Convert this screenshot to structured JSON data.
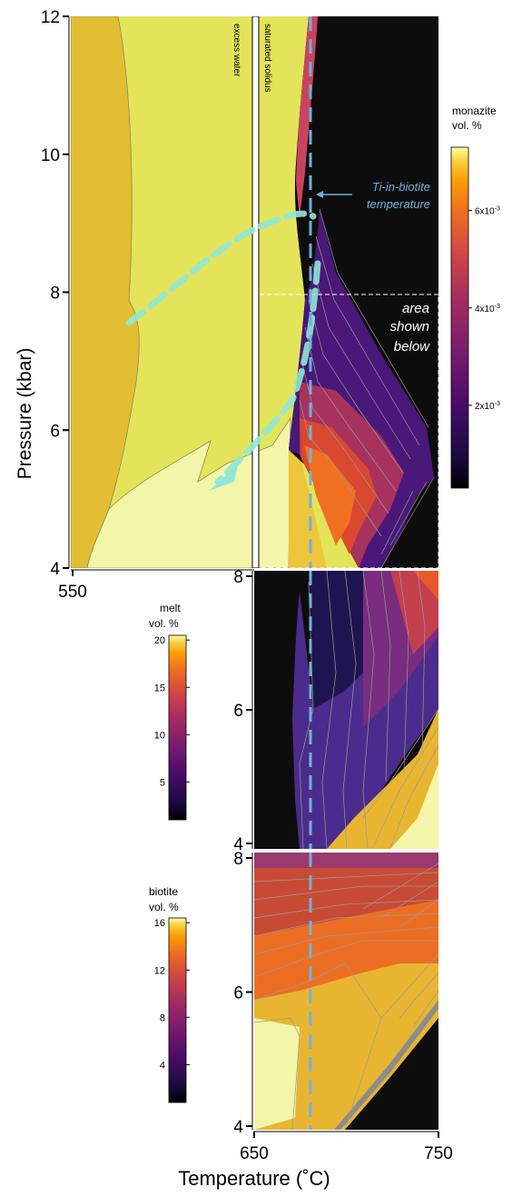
{
  "chart_data": [
    {
      "type": "heatmap",
      "panel": "main",
      "ylabel": "Pressure (kbar)",
      "x_ticks": [
        550
      ],
      "y_ticks": [
        4,
        6,
        8,
        10,
        12
      ],
      "xlim": [
        550,
        750
      ],
      "ylim": [
        4,
        12
      ],
      "annotations": {
        "excess_water": "excess water",
        "saturated_solidus": "saturated solidus",
        "ti_in_biotite_line1": "Ti-in-biotite",
        "ti_in_biotite_line2": "temperature",
        "area_line1": "area",
        "area_line2": "shown",
        "area_line3": "below"
      },
      "ti_in_biotite_temperature": 680,
      "legend": {
        "title_line1": "monazite",
        "title_line2": "vol. %",
        "ticks": [
          {
            "value": 0.006,
            "base": "6x10",
            "exp": "-3"
          },
          {
            "value": 0.004,
            "base": "4x10",
            "exp": "-3"
          },
          {
            "value": 0.002,
            "base": "2x10",
            "exp": "-3"
          }
        ],
        "range": [
          0.0003,
          0.0073
        ]
      }
    },
    {
      "type": "heatmap",
      "panel": "melt",
      "y_ticks": [
        4,
        6,
        8
      ],
      "xlim": [
        650,
        750
      ],
      "ylim": [
        4,
        8
      ],
      "legend": {
        "title_line1": "melt",
        "title_line2": "vol. %",
        "ticks": [
          20,
          15,
          10,
          5
        ],
        "range": [
          1,
          20.5
        ]
      }
    },
    {
      "type": "heatmap",
      "panel": "biotite",
      "xlabel": "Temperature (˚C)",
      "x_ticks": [
        650,
        750
      ],
      "y_ticks": [
        4,
        6,
        8
      ],
      "xlim": [
        650,
        750
      ],
      "ylim": [
        4,
        8
      ],
      "legend": {
        "title_line1": "biotite",
        "title_line2": "vol. %",
        "ticks": [
          16,
          12,
          8,
          4
        ],
        "range": [
          0.8,
          16.4
        ]
      }
    }
  ],
  "colors": {
    "ti_line": "#6fb3dc",
    "pt_path": "#8fe8d4",
    "dark": "#0d0d0d",
    "light_yellow": "#f3f5a8"
  }
}
